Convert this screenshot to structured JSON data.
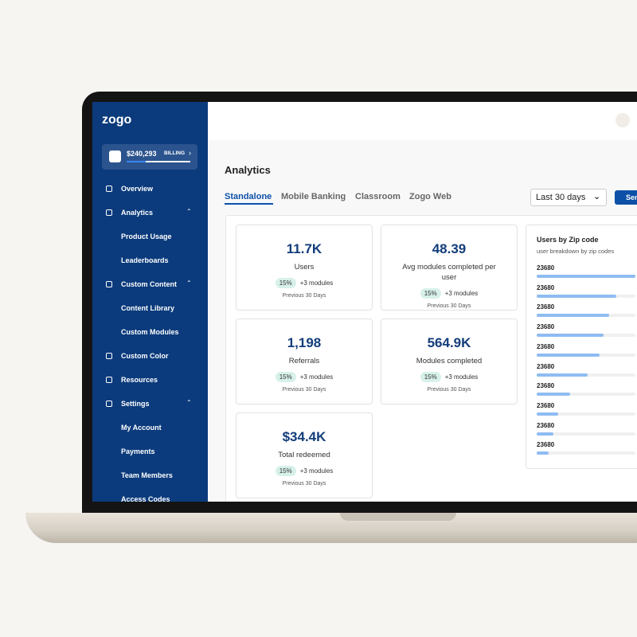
{
  "sidebar": {
    "logo": "zogo",
    "billing": {
      "amount": "$240,293",
      "label": "BILLING"
    },
    "nav": [
      {
        "label": "Overview",
        "level": 1
      },
      {
        "label": "Analytics",
        "level": 1,
        "open": true
      },
      {
        "label": "Product Usage",
        "level": 2
      },
      {
        "label": "Leaderboards",
        "level": 2
      },
      {
        "label": "Custom Content",
        "level": 1,
        "open": true
      },
      {
        "label": "Content Library",
        "level": 2
      },
      {
        "label": "Custom Modules",
        "level": 2
      },
      {
        "label": "Custom Color",
        "level": 1
      },
      {
        "label": "Resources",
        "level": 1
      },
      {
        "label": "Settings",
        "level": 1,
        "open": true
      },
      {
        "label": "My Account",
        "level": 2
      },
      {
        "label": "Payments",
        "level": 2
      },
      {
        "label": "Team Members",
        "level": 2
      },
      {
        "label": "Access Codes",
        "level": 2
      }
    ]
  },
  "page": {
    "title": "Analytics",
    "tabs": [
      "Standalone",
      "Mobile Banking",
      "Classroom",
      "Zogo Web"
    ],
    "date_range": "Last 30 days",
    "button": "Sen"
  },
  "metrics": [
    {
      "value": "11.7K",
      "label": "Users",
      "change": "15%",
      "note": "+3 modules",
      "period": "Previous 30 Days"
    },
    {
      "value": "48.39",
      "label": "Avg modules completed per user",
      "change": "15%",
      "note": "+3 modules",
      "period": "Previous 30 Days"
    },
    {
      "value": "1,198",
      "label": "Referrals",
      "change": "15%",
      "note": "+3 modules",
      "period": "Previous 30 Days"
    },
    {
      "value": "564.9K",
      "label": "Modules completed",
      "change": "15%",
      "note": "+3 modules",
      "period": "Previous 30 Days"
    },
    {
      "value": "$34.4K",
      "label": "Total redeemed",
      "change": "15%",
      "note": "+3 modules",
      "period": "Previous 30 Days"
    }
  ],
  "zip_codes": {
    "title": "Users by Zip code",
    "subtitle": "user breakdown by zip codes",
    "rows": [
      {
        "label": "23680",
        "value": 100
      },
      {
        "label": "23680",
        "value": 81
      },
      {
        "label": "23680",
        "value": 73
      },
      {
        "label": "23680",
        "value": 68
      },
      {
        "label": "23680",
        "value": 64
      },
      {
        "label": "23680",
        "value": 52
      },
      {
        "label": "23680",
        "value": 34
      },
      {
        "label": "23680",
        "value": 22
      },
      {
        "label": "23680",
        "value": 17
      },
      {
        "label": "23680",
        "value": 12
      }
    ]
  }
}
